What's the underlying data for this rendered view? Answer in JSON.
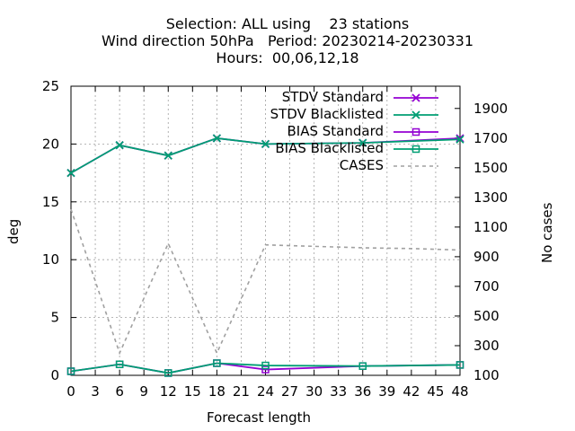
{
  "chart_data": {
    "type": "line",
    "title_lines": [
      "Selection: ALL using    23 stations",
      "Wind direction 50hPa   Period: 20230214-20230331",
      "Hours:  00,06,12,18"
    ],
    "xlabel": "Forecast length",
    "ylabel": "deg",
    "y2label": "No cases",
    "xlim": [
      0,
      48
    ],
    "ylim": [
      0,
      25
    ],
    "y2lim": [
      100,
      2050
    ],
    "xticks": [
      0,
      3,
      6,
      9,
      12,
      15,
      18,
      21,
      24,
      27,
      30,
      33,
      36,
      39,
      42,
      45,
      48
    ],
    "yticks": [
      0,
      5,
      10,
      15,
      20,
      25
    ],
    "y2ticks": [
      100,
      300,
      500,
      700,
      900,
      1100,
      1300,
      1500,
      1700,
      1900
    ],
    "grid": true,
    "legend_position": "top-right",
    "series": [
      {
        "name": "STDV Standard",
        "color": "#9400d3",
        "marker": "x",
        "axis": "y",
        "x": [
          0,
          6,
          12,
          18,
          24,
          36,
          48
        ],
        "values": [
          17.5,
          19.9,
          19.0,
          20.5,
          20.0,
          20.1,
          20.5
        ]
      },
      {
        "name": "STDV Blacklisted",
        "color": "#009e73",
        "marker": "x",
        "axis": "y",
        "x": [
          0,
          6,
          12,
          18,
          24,
          36,
          48
        ],
        "values": [
          17.5,
          19.9,
          19.0,
          20.5,
          20.0,
          20.1,
          20.4
        ]
      },
      {
        "name": "BIAS Standard",
        "color": "#9400d3",
        "marker": "square",
        "axis": "y",
        "x": [
          0,
          6,
          12,
          18,
          24,
          36,
          48
        ],
        "values": [
          0.35,
          0.95,
          0.2,
          1.05,
          0.5,
          0.8,
          0.9
        ]
      },
      {
        "name": "BIAS Blacklisted",
        "color": "#009e73",
        "marker": "square",
        "axis": "y",
        "x": [
          0,
          6,
          12,
          18,
          24,
          36,
          48
        ],
        "values": [
          0.35,
          0.95,
          0.2,
          1.05,
          0.85,
          0.8,
          0.9
        ]
      },
      {
        "name": "CASES",
        "color": "#a0a0a0",
        "marker": "none",
        "dash": true,
        "axis": "y2",
        "x": [
          0,
          6,
          12,
          18,
          24,
          30,
          36,
          42,
          48
        ],
        "values": [
          1220,
          250,
          990,
          250,
          980,
          970,
          960,
          955,
          945
        ]
      }
    ]
  }
}
